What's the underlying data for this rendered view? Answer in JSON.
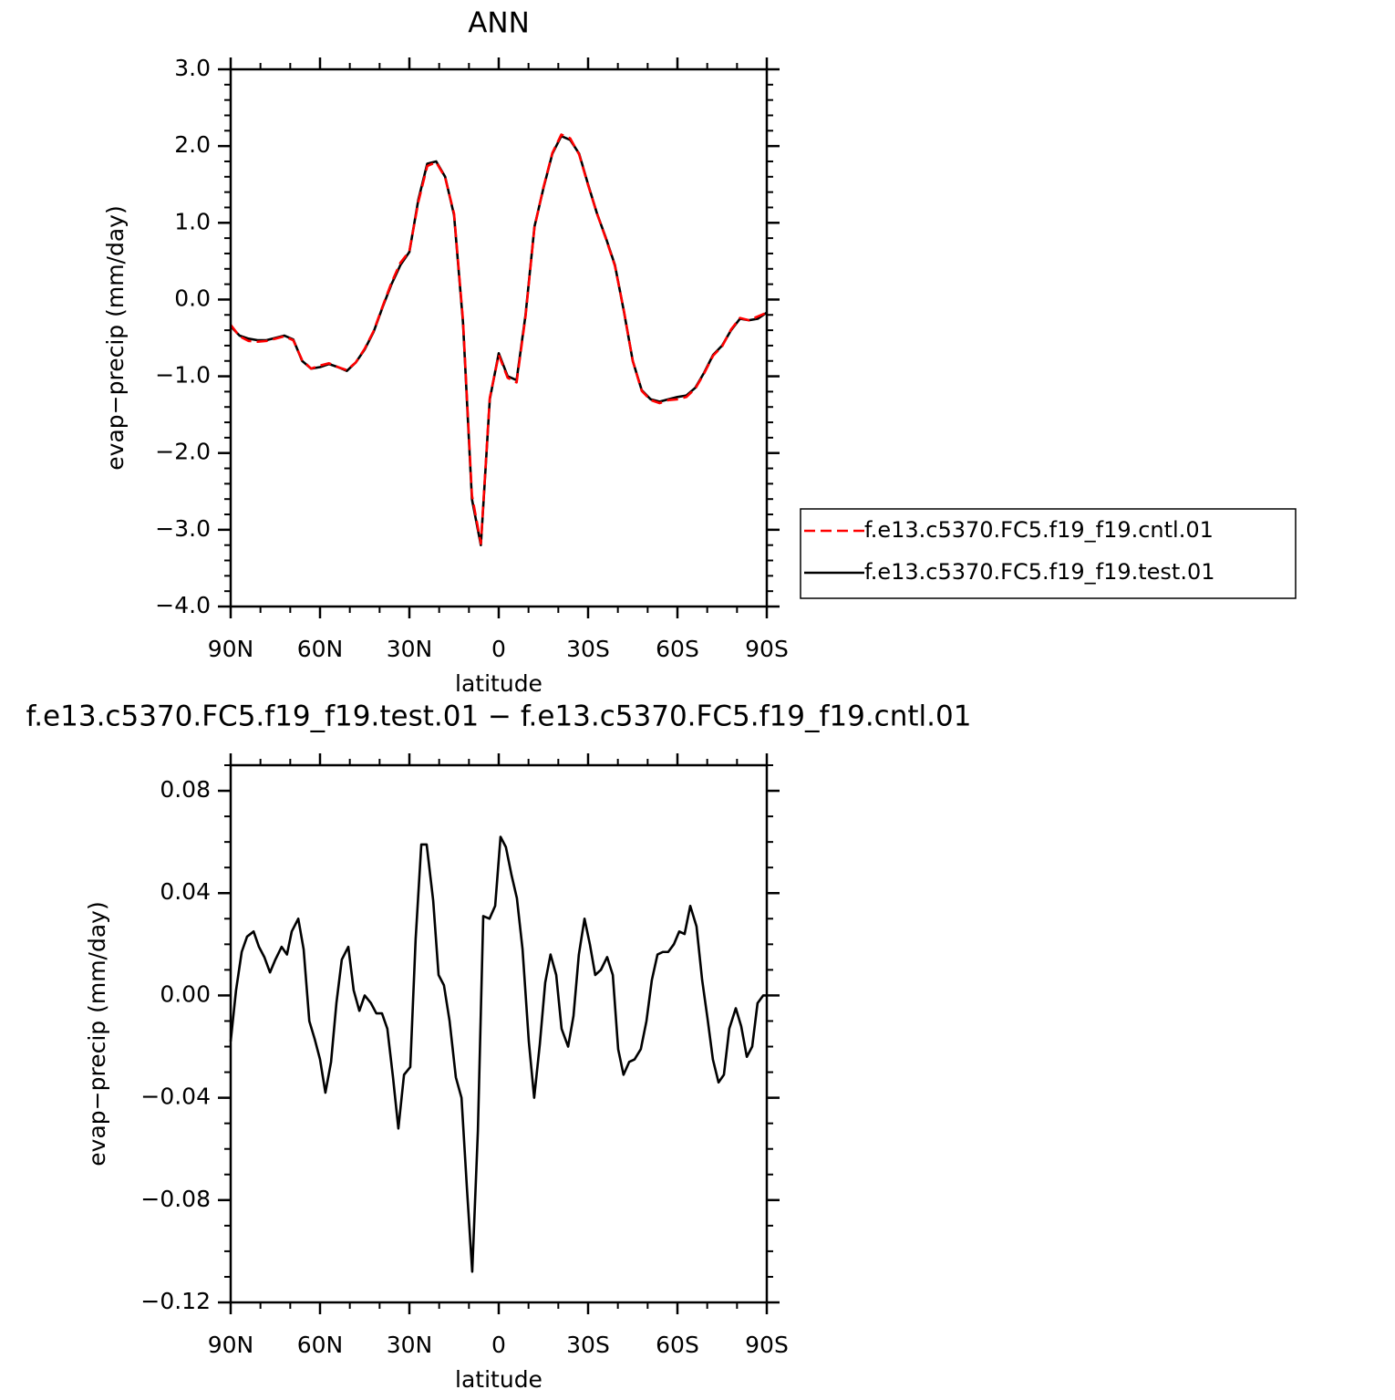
{
  "chart_data": [
    {
      "type": "line",
      "title": "ANN",
      "xlabel": "latitude",
      "ylabel": "evap−precip (mm/day)",
      "x": [
        90,
        87,
        84,
        81,
        78,
        75,
        72,
        69,
        66,
        63,
        60,
        57,
        54,
        51,
        48,
        45,
        42,
        39,
        36,
        33,
        30,
        27,
        24,
        21,
        18,
        15,
        12,
        9,
        6,
        3,
        0,
        -3,
        -6,
        -9,
        -12,
        -15,
        -18,
        -21,
        -24,
        -27,
        -30,
        -33,
        -36,
        -39,
        -42,
        -45,
        -48,
        -51,
        -54,
        -57,
        -60,
        -63,
        -66,
        -69,
        -72,
        -75,
        -78,
        -81,
        -84,
        -87,
        -90
      ],
      "series": [
        {
          "name": "f.e13.c5370.FC5.f19_f19.cntl.01",
          "color": "#ff0000",
          "dash": true,
          "values": [
            -0.33,
            -0.48,
            -0.54,
            -0.55,
            -0.54,
            -0.51,
            -0.48,
            -0.53,
            -0.79,
            -0.9,
            -0.86,
            -0.83,
            -0.88,
            -0.92,
            -0.82,
            -0.64,
            -0.41,
            -0.09,
            0.22,
            0.48,
            0.63,
            1.27,
            1.74,
            1.79,
            1.59,
            1.12,
            -0.27,
            -2.55,
            -3.18,
            -1.28,
            -0.72,
            -1.02,
            -1.08,
            -0.22,
            0.94,
            1.46,
            1.91,
            2.15,
            2.1,
            1.89,
            1.49,
            1.12,
            0.79,
            0.44,
            -0.14,
            -0.8,
            -1.19,
            -1.31,
            -1.35,
            -1.31,
            -1.3,
            -1.27,
            -1.16,
            -0.96,
            -0.73,
            -0.61,
            -0.39,
            -0.24,
            -0.27,
            -0.22,
            -0.17
          ]
        },
        {
          "name": "f.e13.c5370.FC5.f19_f19.test.01",
          "color": "#000000",
          "dash": false,
          "values": [
            -0.35,
            -0.47,
            -0.51,
            -0.53,
            -0.53,
            -0.5,
            -0.47,
            -0.52,
            -0.8,
            -0.9,
            -0.88,
            -0.84,
            -0.88,
            -0.93,
            -0.82,
            -0.65,
            -0.42,
            -0.1,
            0.2,
            0.45,
            0.62,
            1.3,
            1.77,
            1.8,
            1.6,
            1.1,
            -0.3,
            -2.6,
            -3.2,
            -1.3,
            -0.7,
            -1.0,
            -1.05,
            -0.2,
            0.95,
            1.45,
            1.9,
            2.13,
            2.08,
            1.9,
            1.5,
            1.12,
            0.8,
            0.45,
            -0.15,
            -0.8,
            -1.18,
            -1.3,
            -1.33,
            -1.3,
            -1.27,
            -1.25,
            -1.15,
            -0.95,
            -0.72,
            -0.6,
            -0.4,
            -0.25,
            -0.27,
            -0.25,
            -0.17
          ]
        }
      ],
      "xlim": [
        90,
        -90
      ],
      "xticks": [
        {
          "value": 90,
          "label": "90N"
        },
        {
          "value": 60,
          "label": "60N"
        },
        {
          "value": 30,
          "label": "30N"
        },
        0,
        {
          "value": -30,
          "label": "30S"
        },
        {
          "value": -60,
          "label": "60S"
        },
        {
          "value": -90,
          "label": "90S"
        }
      ],
      "ylim": [
        -4,
        3
      ],
      "yticks": [
        {
          "value": 3,
          "label": "3.0"
        },
        {
          "value": 2,
          "label": "2.0"
        },
        {
          "value": 1,
          "label": "1.0"
        },
        {
          "value": 0,
          "label": "0.0"
        },
        {
          "value": -1,
          "label": "−1.0"
        },
        {
          "value": -2,
          "label": "−2.0"
        },
        {
          "value": -3,
          "label": "−3.0"
        },
        {
          "value": -4,
          "label": "−4.0"
        }
      ],
      "legend": "right"
    },
    {
      "type": "line",
      "title": "f.e13.c5370.FC5.f19_f19.test.01  −  f.e13.c5370.FC5.f19_f19.cntl.01",
      "xlabel": "latitude",
      "ylabel": "evap−precip (mm/day)",
      "x": [
        90.0,
        88.2,
        86.3,
        84.5,
        82.3,
        80.5,
        78.7,
        76.8,
        75.0,
        72.9,
        71.1,
        69.5,
        67.3,
        65.5,
        63.6,
        61.8,
        60.0,
        58.2,
        56.3,
        54.5,
        52.7,
        50.5,
        48.7,
        46.8,
        45.0,
        42.9,
        41.1,
        39.2,
        37.4,
        35.5,
        33.7,
        31.8,
        29.7,
        27.9,
        26.0,
        24.2,
        22.0,
        20.2,
        18.4,
        16.5,
        14.4,
        12.5,
        10.7,
        8.9,
        7.0,
        5.2,
        3.1,
        1.2,
        -0.6,
        -2.4,
        -4.3,
        -6.1,
        -8.0,
        -10.1,
        -11.9,
        -13.8,
        -15.6,
        -17.4,
        -19.3,
        -21.1,
        -23.3,
        -25.1,
        -26.9,
        -28.8,
        -30.6,
        -32.4,
        -34.3,
        -36.4,
        -38.3,
        -40.1,
        -41.9,
        -43.8,
        -45.6,
        -47.7,
        -49.6,
        -51.4,
        -53.3,
        -55.1,
        -56.9,
        -58.8,
        -60.6,
        -62.4,
        -64.3,
        -66.4,
        -68.3,
        -70.1,
        -71.9,
        -73.8,
        -75.6,
        -77.4,
        -79.6,
        -81.4,
        -83.3,
        -85.1,
        -86.9,
        -88.8,
        -90.0
      ],
      "series": [
        {
          "color": "#000000",
          "dash": false,
          "values": [
            -0.018,
            0.002,
            0.017,
            0.023,
            0.025,
            0.019,
            0.015,
            0.009,
            0.014,
            0.019,
            0.016,
            0.025,
            0.03,
            0.018,
            -0.01,
            -0.017,
            -0.025,
            -0.038,
            -0.026,
            -0.003,
            0.014,
            0.019,
            0.002,
            -0.006,
            0,
            -0.003,
            -0.007,
            -0.007,
            -0.013,
            -0.032,
            -0.052,
            -0.031,
            -0.028,
            0.022,
            0.059,
            0.059,
            0.037,
            0.008,
            0.004,
            -0.01,
            -0.032,
            -0.04,
            -0.075,
            -0.108,
            -0.053,
            0.031,
            0.03,
            0.035,
            0.062,
            0.058,
            0.047,
            0.038,
            0.018,
            -0.018,
            -0.04,
            -0.019,
            0.005,
            0.016,
            0.008,
            -0.013,
            -0.02,
            -0.008,
            0.016,
            0.03,
            0.02,
            0.008,
            0.01,
            0.015,
            0.008,
            -0.021,
            -0.031,
            -0.026,
            -0.025,
            -0.021,
            -0.01,
            0.006,
            0.016,
            0.017,
            0.017,
            0.02,
            0.025,
            0.024,
            0.035,
            0.027,
            0.006,
            -0.009,
            -0.025,
            -0.034,
            -0.031,
            -0.013,
            -0.005,
            -0.012,
            -0.024,
            -0.02,
            -0.003,
            0,
            0
          ]
        }
      ],
      "xlim": [
        90,
        -90
      ],
      "xticks": [
        {
          "value": 90,
          "label": "90N"
        },
        {
          "value": 60,
          "label": "60N"
        },
        {
          "value": 30,
          "label": "30N"
        },
        0,
        {
          "value": -30,
          "label": "30S"
        },
        {
          "value": -60,
          "label": "60S"
        },
        {
          "value": -90,
          "label": "90S"
        }
      ],
      "ylim": [
        -0.12,
        0.09
      ],
      "yticks": [
        {
          "value": 0.08,
          "label": "0.08"
        },
        {
          "value": 0.04,
          "label": "0.04"
        },
        {
          "value": 0,
          "label": "0.00"
        },
        {
          "value": -0.04,
          "label": "−0.04"
        },
        {
          "value": -0.08,
          "label": "−0.08"
        },
        {
          "value": -0.12,
          "label": "−0.12"
        }
      ]
    }
  ]
}
